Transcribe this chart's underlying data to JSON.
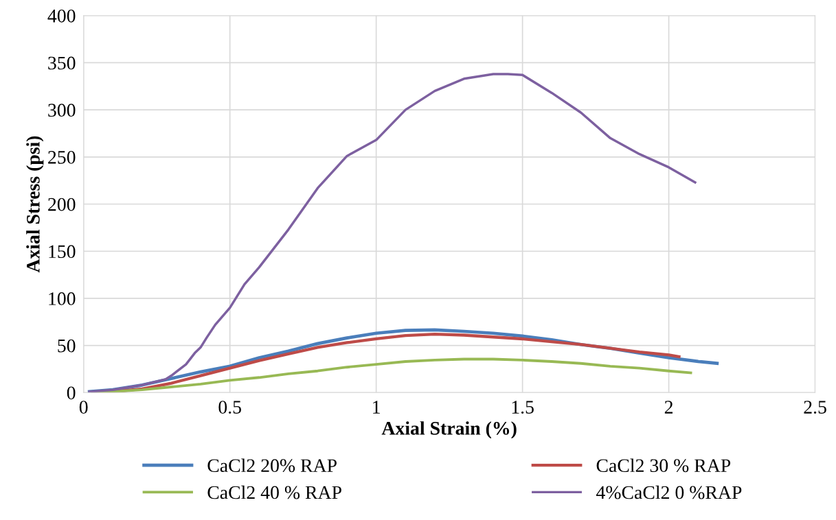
{
  "chart_data": {
    "type": "line",
    "xlabel": "Axial Strain (%)",
    "ylabel": "Axial Stress (psi)",
    "xlim": [
      0,
      2.5
    ],
    "xticks": [
      0,
      0.5,
      1,
      1.5,
      2,
      2.5
    ],
    "ylim": [
      0,
      400
    ],
    "yticks": [
      0,
      50,
      100,
      150,
      200,
      250,
      300,
      350,
      400
    ],
    "grid": true,
    "legend": "bottom",
    "marker": "none",
    "line_style": "solid",
    "series": [
      {
        "name": "CaCl2 20% RAP",
        "color": "#4a7ebb",
        "x": [
          0.02,
          0.1,
          0.2,
          0.3,
          0.4,
          0.5,
          0.6,
          0.7,
          0.8,
          0.9,
          1.0,
          1.1,
          1.2,
          1.3,
          1.4,
          1.5,
          1.6,
          1.7,
          1.8,
          1.9,
          2.0,
          2.1,
          2.165
        ],
        "values": [
          1,
          3,
          8,
          15,
          22,
          28,
          37,
          44,
          52,
          58,
          63,
          66,
          66.5,
          65,
          63,
          60,
          56,
          51,
          47,
          42,
          37,
          33,
          31
        ]
      },
      {
        "name": "CaCl2 30 % RAP",
        "color": "#be4b48",
        "x": [
          0.03,
          0.1,
          0.2,
          0.3,
          0.4,
          0.5,
          0.6,
          0.7,
          0.8,
          0.9,
          1.0,
          1.1,
          1.2,
          1.3,
          1.4,
          1.5,
          1.6,
          1.7,
          1.8,
          1.9,
          2.0,
          2.035
        ],
        "values": [
          0,
          1,
          4,
          10,
          18,
          26,
          34,
          41,
          48,
          53,
          57,
          60.5,
          62,
          61,
          59,
          57,
          54,
          51,
          47,
          43,
          40,
          38
        ]
      },
      {
        "name": "CaCl2 40 % RAP",
        "color": "#98b954",
        "x": [
          0.03,
          0.1,
          0.2,
          0.3,
          0.4,
          0.5,
          0.6,
          0.7,
          0.8,
          0.9,
          1.0,
          1.1,
          1.2,
          1.3,
          1.4,
          1.5,
          1.6,
          1.7,
          1.8,
          1.9,
          2.0,
          2.075
        ],
        "values": [
          0,
          1,
          3,
          6,
          9,
          13,
          16,
          20,
          23,
          27,
          30,
          33,
          34.5,
          35.5,
          35.5,
          34.5,
          33,
          31,
          28,
          26,
          23,
          21
        ]
      },
      {
        "name": "4%CaCl2 0 %RAP",
        "color": "#7d60a0",
        "x": [
          0.02,
          0.1,
          0.2,
          0.28,
          0.3,
          0.35,
          0.38,
          0.4,
          0.42,
          0.45,
          0.5,
          0.55,
          0.6,
          0.7,
          0.8,
          0.9,
          1.0,
          1.1,
          1.2,
          1.3,
          1.4,
          1.45,
          1.5,
          1.6,
          1.7,
          1.8,
          1.9,
          2.0,
          2.09
        ],
        "values": [
          1,
          3,
          8,
          14,
          18,
          30,
          42,
          48,
          58,
          72,
          90,
          115,
          133,
          173,
          217,
          251,
          268,
          300,
          320,
          333,
          338,
          338,
          337,
          318,
          297,
          270,
          253,
          239,
          223
        ]
      }
    ]
  }
}
